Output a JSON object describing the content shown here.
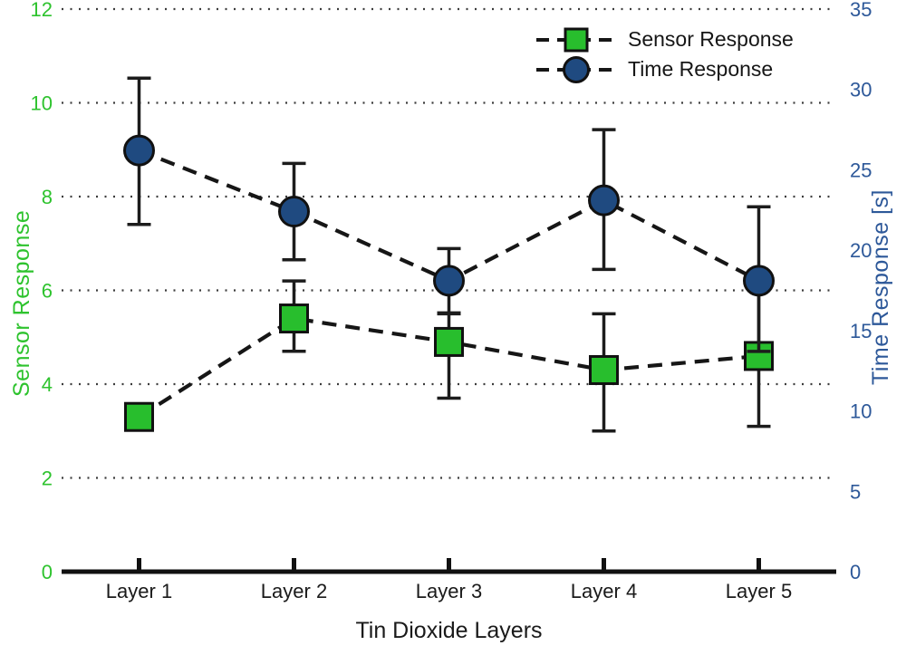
{
  "chart_data": {
    "type": "line",
    "title": "",
    "xlabel": "Tin Dioxide Layers",
    "categories": [
      "Layer 1",
      "Layer 2",
      "Layer 3",
      "Layer 4",
      "Layer 5"
    ],
    "left_axis": {
      "label": "Sensor Response",
      "color": "#2ec32e",
      "min": 0,
      "max": 12,
      "ticks": [
        0,
        2,
        4,
        6,
        8,
        10,
        12
      ],
      "grid": "dotted"
    },
    "right_axis": {
      "label": "Time Response [s]",
      "color": "#2d5899",
      "min": 0,
      "max": 35,
      "ticks": [
        0,
        5,
        10,
        15,
        20,
        25,
        30,
        35
      ]
    },
    "series": [
      {
        "name": "Sensor Response",
        "axis": "left",
        "marker": "square",
        "marker_color": "#28be2d",
        "line_style": "dashed",
        "line_color": "#161616",
        "values": [
          3.3,
          5.4,
          4.9,
          4.3,
          4.6
        ],
        "err_low": [
          null,
          4.7,
          3.7,
          3.0,
          3.1
        ],
        "err_high": [
          null,
          6.2,
          5.5,
          5.5,
          6.1
        ]
      },
      {
        "name": "Time Response",
        "axis": "right",
        "marker": "circle",
        "marker_color": "#1f4a80",
        "line_style": "dashed",
        "line_color": "#161616",
        "values": [
          26.2,
          22.4,
          18.1,
          23.1,
          18.1
        ],
        "err_low": [
          21.6,
          19.4,
          16.1,
          18.8,
          13.7
        ],
        "err_high": [
          30.7,
          25.4,
          20.1,
          27.5,
          22.7
        ]
      }
    ],
    "legend": {
      "position": "top-right",
      "entries": [
        {
          "label": "Sensor Response",
          "marker": "square"
        },
        {
          "label": "Time Response",
          "marker": "circle"
        }
      ]
    }
  },
  "legend": {
    "sensor_label": "Sensor Response",
    "time_label": "Time Response"
  },
  "axes": {
    "left_title": "Sensor Response",
    "right_title": "Time Response [s]",
    "x_title": "Tin Dioxide Layers"
  },
  "colors": {
    "green_text": "#2ec32e",
    "blue_text": "#2d5899",
    "green_marker": "#28be2d",
    "blue_marker": "#1f4a80",
    "line": "#161616"
  }
}
